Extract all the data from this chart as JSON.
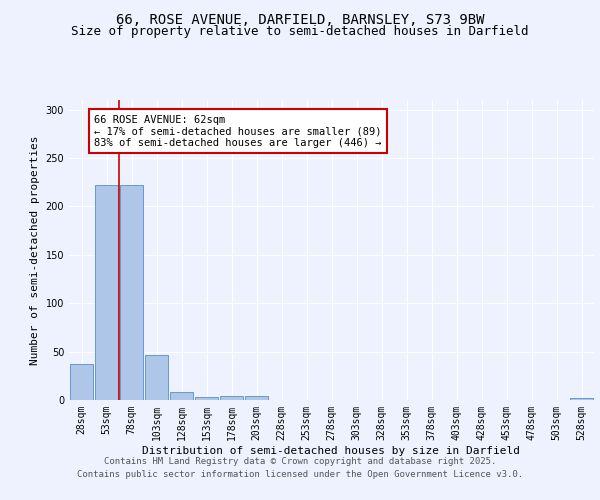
{
  "title_line1": "66, ROSE AVENUE, DARFIELD, BARNSLEY, S73 9BW",
  "title_line2": "Size of property relative to semi-detached houses in Darfield",
  "xlabel": "Distribution of semi-detached houses by size in Darfield",
  "ylabel": "Number of semi-detached properties",
  "categories": [
    "28sqm",
    "53sqm",
    "78sqm",
    "103sqm",
    "128sqm",
    "153sqm",
    "178sqm",
    "203sqm",
    "228sqm",
    "253sqm",
    "278sqm",
    "303sqm",
    "328sqm",
    "353sqm",
    "378sqm",
    "403sqm",
    "428sqm",
    "453sqm",
    "478sqm",
    "503sqm",
    "528sqm"
  ],
  "values": [
    37,
    222,
    222,
    47,
    8,
    3,
    4,
    4,
    0,
    0,
    0,
    0,
    0,
    0,
    0,
    0,
    0,
    0,
    0,
    0,
    2
  ],
  "bar_color": "#aec6e8",
  "bar_edge_color": "#5590c8",
  "annotation_text_line1": "66 ROSE AVENUE: 62sqm",
  "annotation_text_line2": "← 17% of semi-detached houses are smaller (89)",
  "annotation_text_line3": "83% of semi-detached houses are larger (446) →",
  "annotation_box_color": "#ffffff",
  "annotation_box_edge_color": "#cc0000",
  "redline_x": 1.48,
  "redline_color": "#cc0000",
  "ylim": [
    0,
    310
  ],
  "yticks": [
    0,
    50,
    100,
    150,
    200,
    250,
    300
  ],
  "footer_line1": "Contains HM Land Registry data © Crown copyright and database right 2025.",
  "footer_line2": "Contains public sector information licensed under the Open Government Licence v3.0.",
  "bg_color": "#eef2ff",
  "plot_bg_color": "#eef2ff",
  "title_fontsize": 10,
  "subtitle_fontsize": 9,
  "axis_label_fontsize": 8,
  "tick_fontsize": 7,
  "annotation_fontsize": 7.5,
  "footer_fontsize": 6.5
}
